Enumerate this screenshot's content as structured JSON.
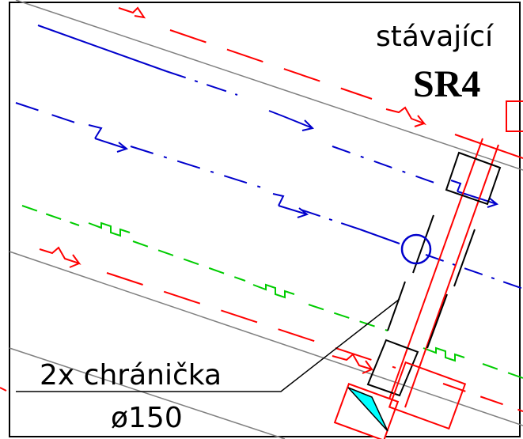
{
  "drawing": {
    "label_existing": "stávající",
    "label_sr": "SR4",
    "label_protector": "2x  chránička",
    "label_diameter": "ø150"
  },
  "colors": {
    "background": "#ffffff",
    "frame": "#000000",
    "edge_lines": "#808080",
    "red_utility": "#ff0000",
    "blue_utility": "#0000cc",
    "green_utility": "#00cc00",
    "fill_cyan": "#00ffff",
    "text": "#000000"
  },
  "icons": {
    "flow_arrow_red": "flow-arrow-red-icon",
    "flow_arrow_blue": "flow-arrow-blue-icon",
    "green_symbol": "green-utility-symbol-icon",
    "manhole": "manhole-circle-icon"
  }
}
